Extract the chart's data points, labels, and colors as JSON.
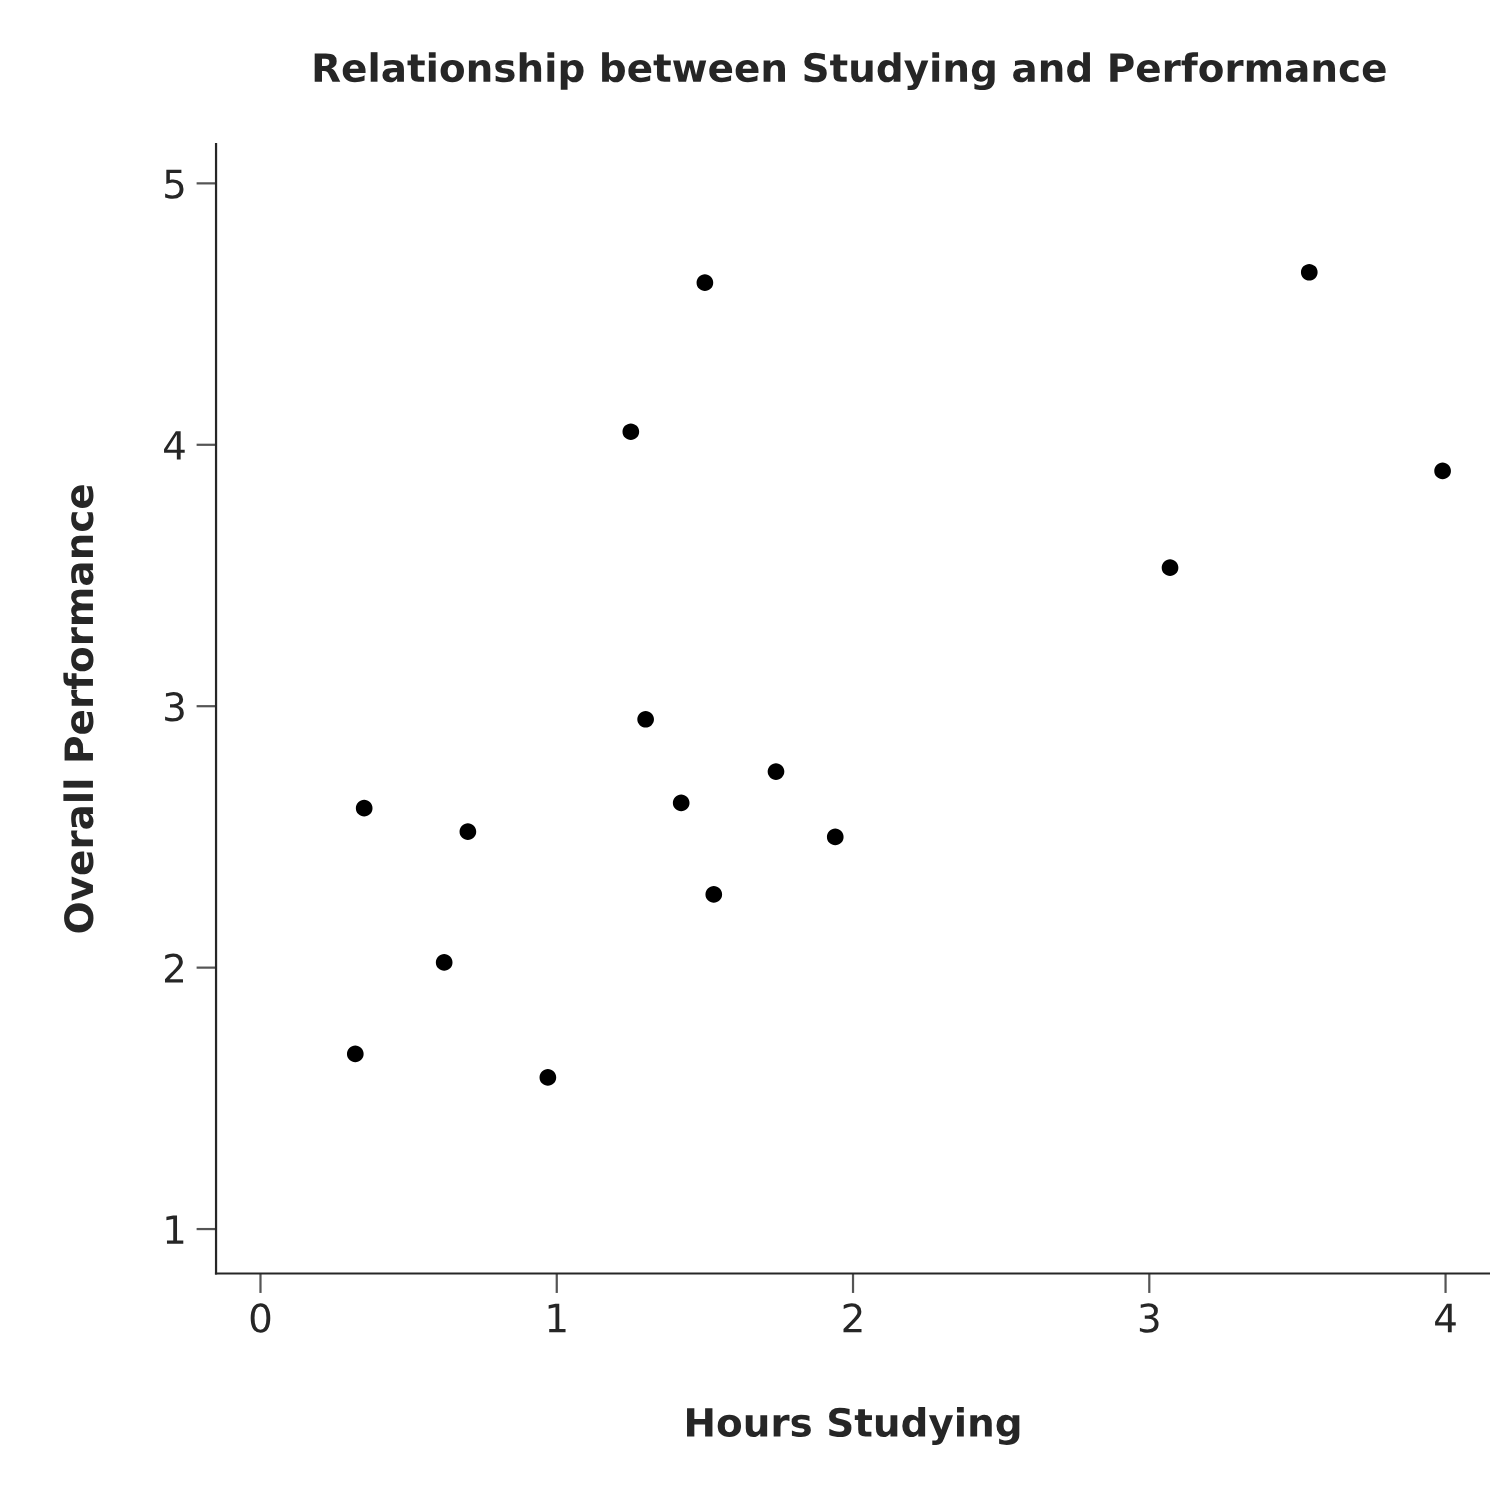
{
  "chart_data": {
    "type": "scatter",
    "title": "Relationship between Studying and Performance",
    "xlabel": "Hours Studying",
    "ylabel": "Overall Performance",
    "x": [
      0.32,
      0.35,
      0.62,
      0.7,
      0.97,
      1.25,
      1.3,
      1.42,
      1.5,
      1.53,
      1.74,
      1.94,
      3.07,
      3.54,
      3.99
    ],
    "values": [
      1.67,
      2.61,
      2.02,
      2.52,
      1.58,
      4.05,
      2.95,
      2.63,
      4.62,
      2.28,
      2.75,
      2.5,
      3.53,
      4.66,
      3.9
    ],
    "color": "#000000",
    "marker": "circle",
    "grid": false,
    "legend": false,
    "xlim": [
      -0.15,
      4.15
    ],
    "ylim": [
      0.83,
      5.15
    ],
    "xticks": [
      0,
      1,
      2,
      3,
      4
    ],
    "yticks": [
      1,
      2,
      3,
      4,
      5
    ]
  }
}
